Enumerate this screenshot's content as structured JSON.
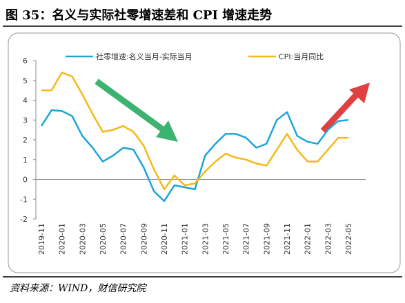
{
  "chart_data": {
    "type": "line",
    "title": "图 35：名义与实际社零增速差和 CPI 增速走势",
    "source": "资料来源：WIND，财信研究院",
    "categories": [
      "2019-11",
      null,
      "2020-01",
      null,
      "2020-03",
      null,
      "2020-05",
      null,
      "2020-07",
      null,
      "2020-09",
      null,
      "2020-11",
      null,
      "2021-01",
      null,
      "2021-03",
      null,
      "2021-05",
      null,
      "2021-07",
      null,
      "2021-09",
      null,
      "2021-11",
      null,
      "2022-01",
      null,
      "2022-03",
      null,
      "2022-05"
    ],
    "series": [
      {
        "name": "社零增速:名义当月-实际当月",
        "color": "#1fa3d8",
        "values": [
          2.7,
          3.5,
          3.45,
          3.2,
          2.2,
          1.6,
          0.9,
          1.2,
          1.6,
          1.5,
          0.6,
          -0.6,
          -1.1,
          -0.3,
          -0.4,
          -0.5,
          1.2,
          1.8,
          2.3,
          2.3,
          2.1,
          1.6,
          1.8,
          3.0,
          3.4,
          2.2,
          1.9,
          1.8,
          2.5,
          2.95,
          3.0
        ]
      },
      {
        "name": "CPI:当月同比",
        "color": "#f5b817",
        "values": [
          4.5,
          4.5,
          5.4,
          5.2,
          4.3,
          3.3,
          2.4,
          2.5,
          2.7,
          2.4,
          1.7,
          0.5,
          -0.5,
          0.2,
          -0.3,
          -0.2,
          0.4,
          0.9,
          1.3,
          1.1,
          1.0,
          0.8,
          0.7,
          1.5,
          2.3,
          1.5,
          0.9,
          0.9,
          1.5,
          2.1,
          2.1
        ]
      }
    ],
    "ylim": [
      -2,
      6
    ],
    "yticks": [
      -2,
      -1,
      0,
      1,
      2,
      3,
      4,
      5,
      6
    ],
    "legend": "top"
  }
}
